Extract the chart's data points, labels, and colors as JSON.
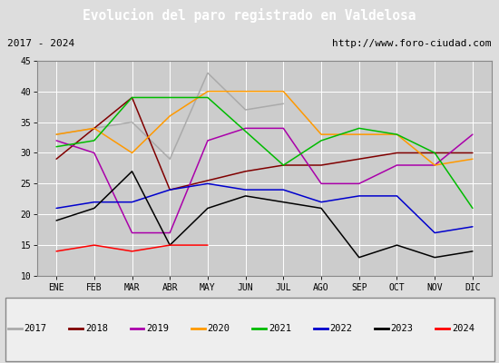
{
  "title": "Evolucion del paro registrado en Valdelosa",
  "subtitle_left": "2017 - 2024",
  "subtitle_right": "http://www.foro-ciudad.com",
  "months": [
    "ENE",
    "FEB",
    "MAR",
    "ABR",
    "MAY",
    "JUN",
    "JUL",
    "AGO",
    "SEP",
    "OCT",
    "NOV",
    "DIC"
  ],
  "ylim": [
    10,
    45
  ],
  "yticks": [
    10,
    15,
    20,
    25,
    30,
    35,
    40,
    45
  ],
  "series": {
    "2017": {
      "color": "#aaaaaa",
      "values": [
        33,
        34,
        35,
        29,
        43,
        37,
        38,
        null,
        null,
        null,
        null,
        null
      ]
    },
    "2018": {
      "color": "#800000",
      "values": [
        29,
        34,
        39,
        24,
        null,
        27,
        28,
        28,
        29,
        30,
        30,
        30
      ]
    },
    "2019": {
      "color": "#aa00aa",
      "values": [
        32,
        30,
        17,
        17,
        32,
        34,
        34,
        25,
        25,
        28,
        28,
        33
      ]
    },
    "2020": {
      "color": "#ff9900",
      "values": [
        33,
        34,
        30,
        36,
        40,
        40,
        40,
        33,
        33,
        33,
        28,
        29
      ]
    },
    "2021": {
      "color": "#00bb00",
      "values": [
        31,
        32,
        39,
        39,
        39,
        null,
        28,
        32,
        34,
        33,
        30,
        21
      ]
    },
    "2022": {
      "color": "#0000cc",
      "values": [
        21,
        22,
        22,
        24,
        25,
        24,
        24,
        22,
        23,
        23,
        17,
        18
      ]
    },
    "2023": {
      "color": "#000000",
      "values": [
        19,
        21,
        27,
        15,
        21,
        23,
        22,
        21,
        13,
        15,
        13,
        14
      ]
    },
    "2024": {
      "color": "#ff0000",
      "values": [
        14,
        15,
        14,
        15,
        15,
        null,
        null,
        null,
        null,
        null,
        null,
        null
      ]
    }
  },
  "bg_color": "#dddddd",
  "plot_bg_color": "#cccccc",
  "title_bg_color": "#4f6fbe",
  "title_color": "#ffffff",
  "grid_color": "#ffffff",
  "legend_bg": "#eeeeee",
  "subtitle_bg": "#dddddd"
}
